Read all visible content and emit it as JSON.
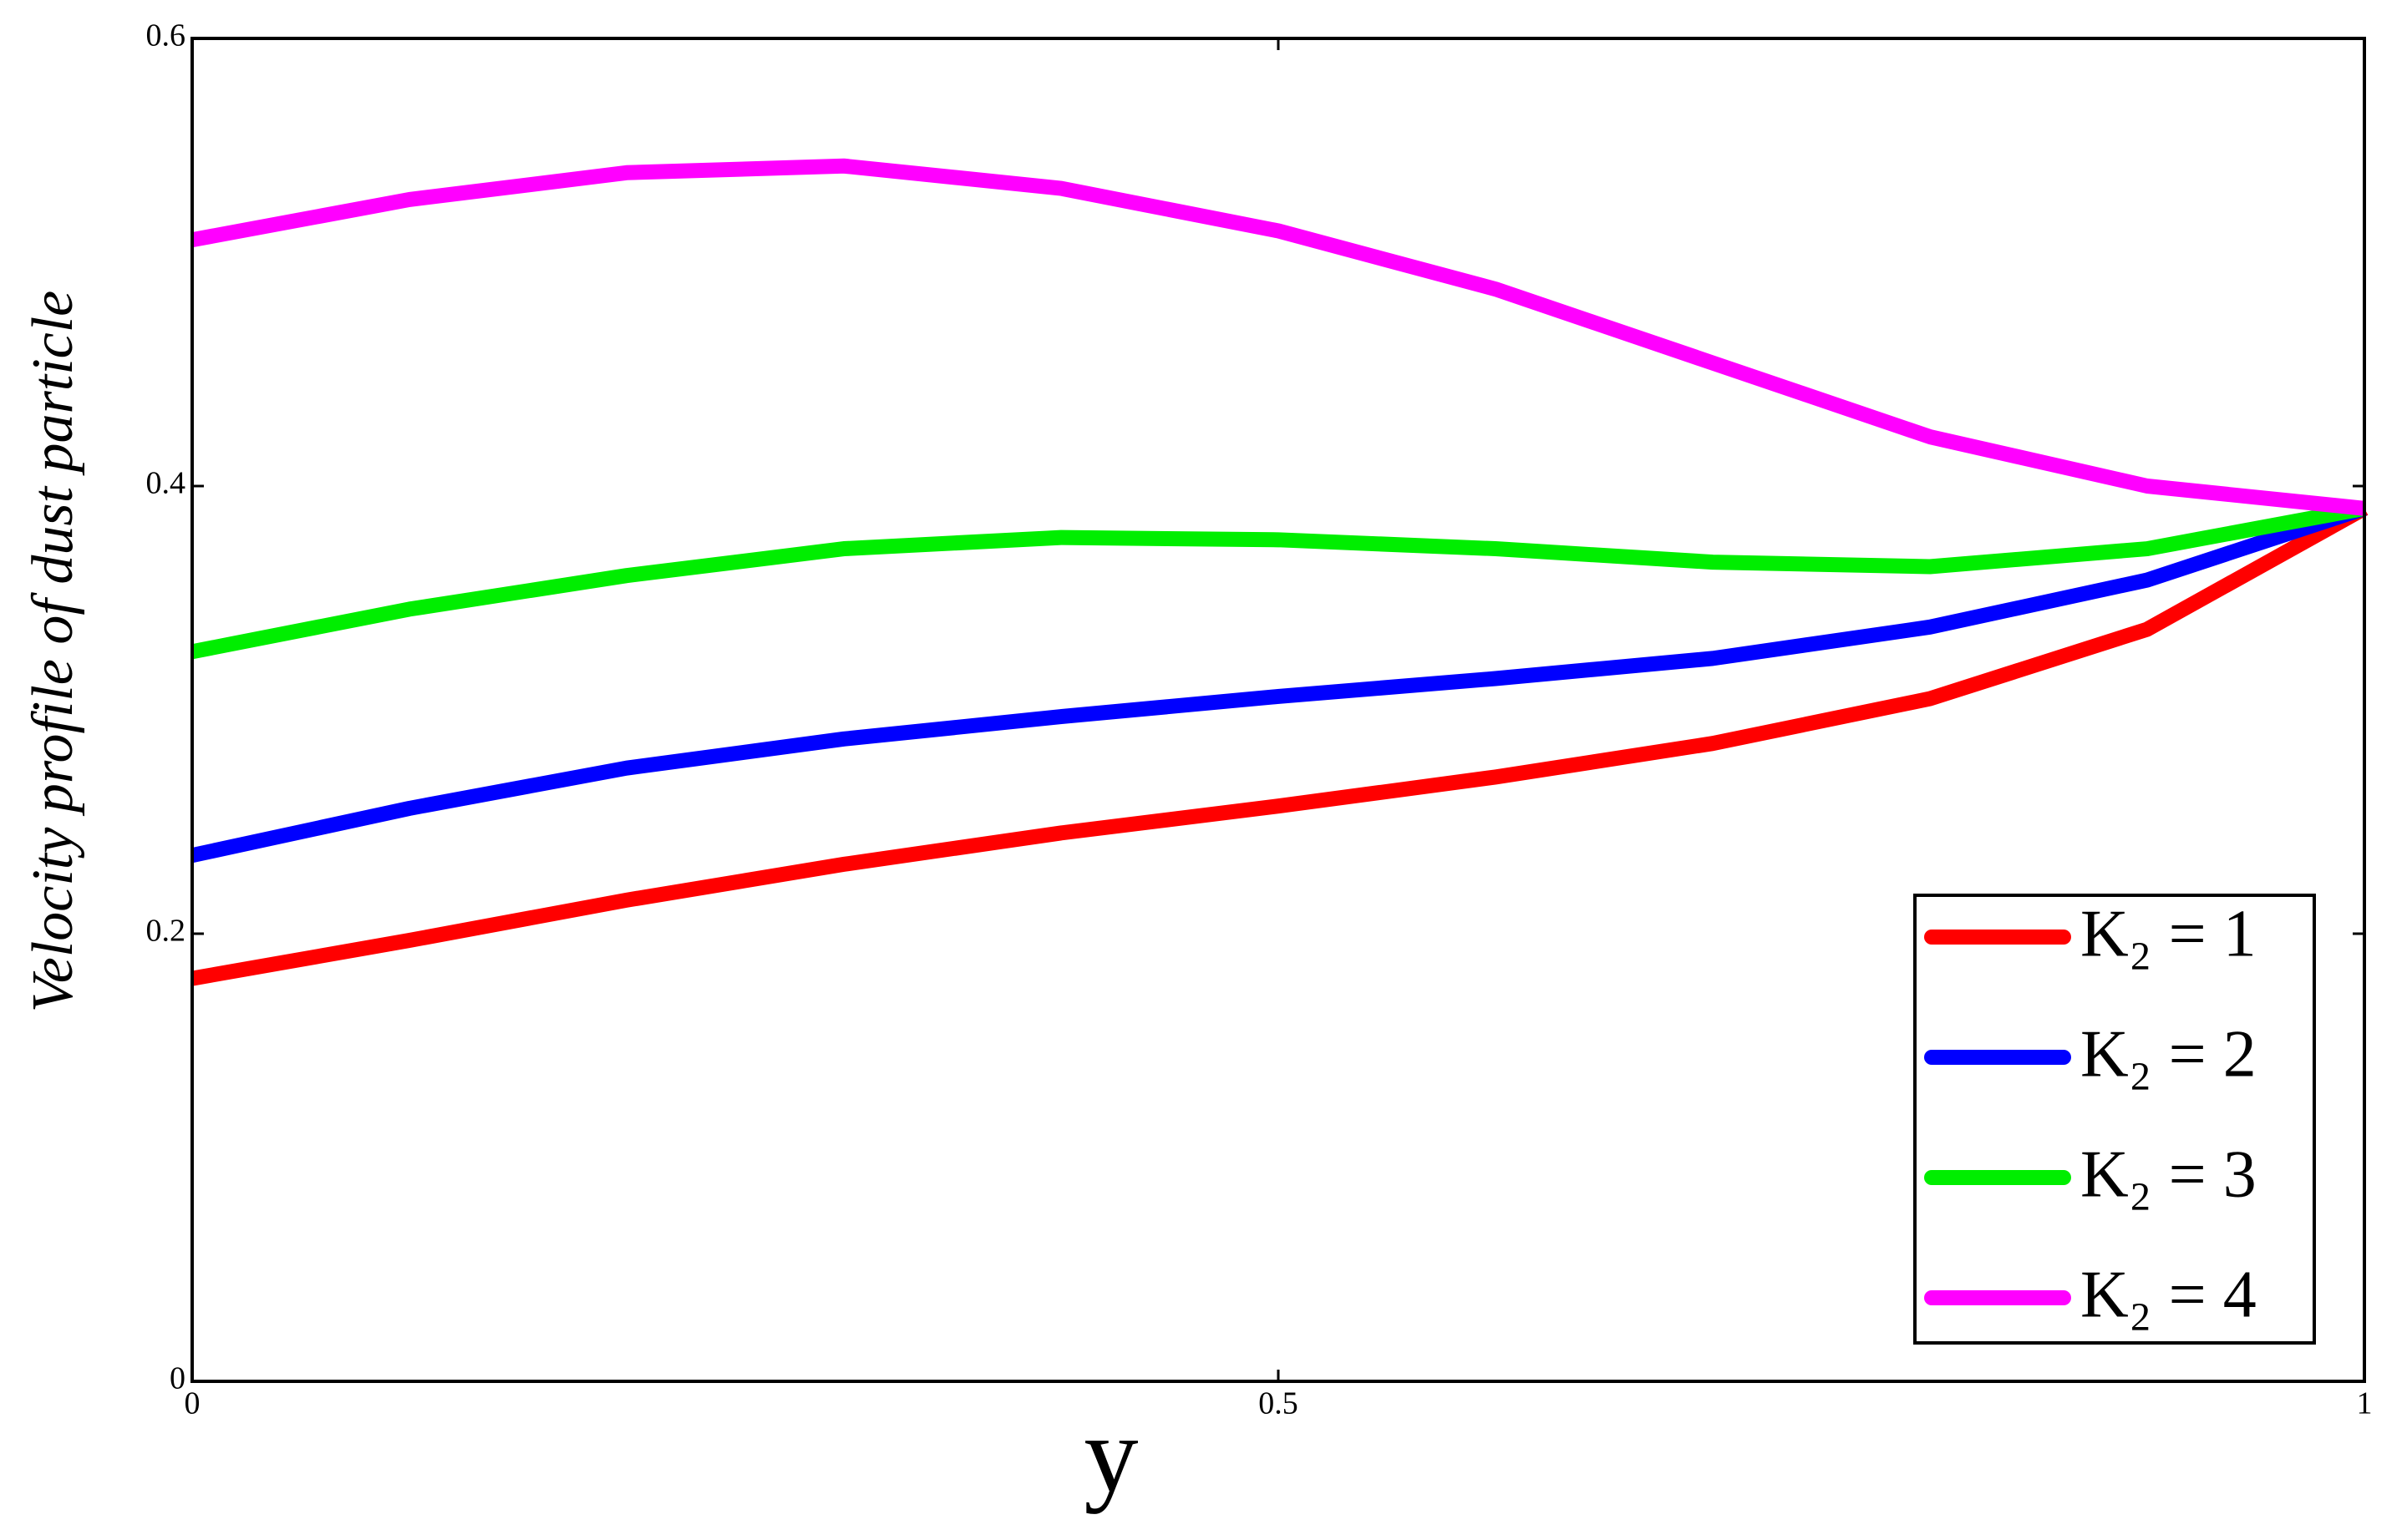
{
  "chart_data": {
    "type": "line",
    "x_label": "y",
    "y_label": "Velocity profile of  dust  particle",
    "x": [
      0,
      0.1,
      0.2,
      0.3,
      0.4,
      0.5,
      0.6,
      0.7,
      0.8,
      0.9,
      1
    ],
    "series": [
      {
        "name": "K₂ = 1",
        "color": "#ff0000",
        "values": [
          0.18,
          0.197,
          0.215,
          0.231,
          0.245,
          0.257,
          0.27,
          0.285,
          0.305,
          0.336,
          0.39
        ]
      },
      {
        "name": "K₂ = 2",
        "color": "#0000ff",
        "values": [
          0.235,
          0.256,
          0.274,
          0.287,
          0.297,
          0.306,
          0.314,
          0.323,
          0.337,
          0.358,
          0.39
        ]
      },
      {
        "name": "K₂ = 3",
        "color": "#00ee00",
        "values": [
          0.326,
          0.345,
          0.36,
          0.372,
          0.377,
          0.376,
          0.372,
          0.366,
          0.364,
          0.372,
          0.39
        ]
      },
      {
        "name": "K₂ = 4",
        "color": "#ff00ff",
        "values": [
          0.51,
          0.528,
          0.54,
          0.543,
          0.533,
          0.514,
          0.488,
          0.455,
          0.422,
          0.4,
          0.39
        ]
      }
    ],
    "xlim": [
      0,
      1
    ],
    "xticks": [
      0,
      0.5,
      1
    ],
    "ylim": [
      0,
      0.6
    ],
    "yticks": [
      0,
      0.2,
      0.4,
      0.6
    ],
    "legend": "lower right",
    "grid": false
  }
}
